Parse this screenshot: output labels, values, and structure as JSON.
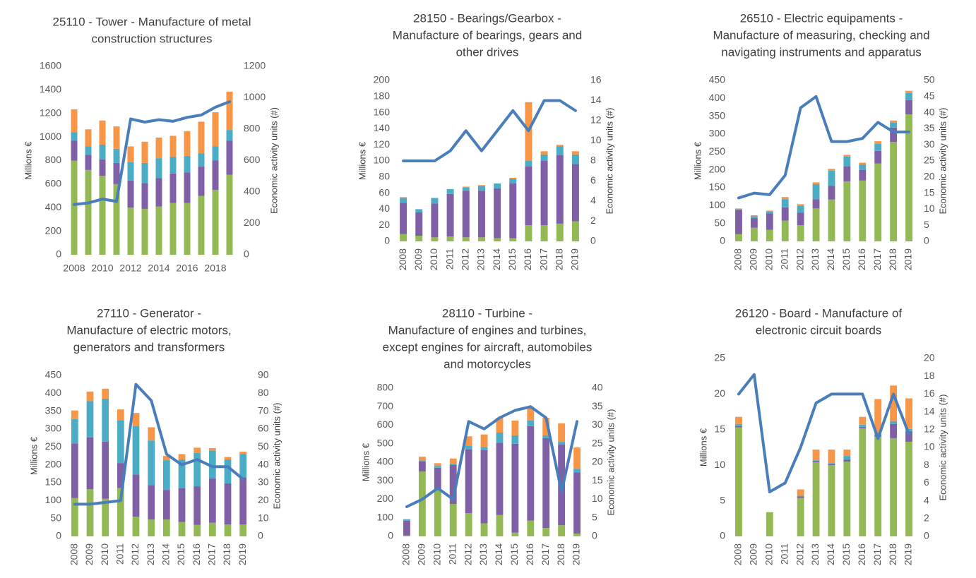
{
  "chart_data": [
    {
      "type": "bar",
      "title": [
        "25110 - Tower - Manufacture of metal",
        "construction structures"
      ],
      "ylabel": "Millions €",
      "y2label": "Economic activity units (#)",
      "categories": [
        "2008",
        null,
        "2010",
        null,
        "2012",
        null,
        "2014",
        null,
        "2016",
        null,
        "2018",
        null
      ],
      "ylim": [
        0,
        1600
      ],
      "yticks": [
        0,
        200,
        400,
        600,
        800,
        1000,
        1200,
        1400,
        1600
      ],
      "y2lim": [
        0,
        1200
      ],
      "y2ticks": [
        0,
        200,
        400,
        600,
        800,
        1000,
        1200
      ],
      "grid": false,
      "series": [
        {
          "color": "#93b955",
          "values": [
            800,
            720,
            670,
            600,
            400,
            390,
            410,
            440,
            440,
            500,
            550,
            680
          ]
        },
        {
          "color": "#7f5fa5",
          "values": [
            170,
            130,
            140,
            180,
            230,
            220,
            240,
            250,
            260,
            250,
            250,
            290
          ]
        },
        {
          "color": "#4bacc6",
          "values": [
            70,
            70,
            125,
            120,
            155,
            170,
            170,
            140,
            140,
            110,
            120,
            90
          ]
        },
        {
          "color": "#f79646",
          "values": [
            195,
            145,
            205,
            190,
            135,
            180,
            175,
            180,
            210,
            270,
            290,
            325
          ]
        },
        {
          "color": "#4a7ebb",
          "type": "line",
          "axis": "y2",
          "values": [
            320,
            330,
            355,
            340,
            865,
            845,
            860,
            850,
            875,
            890,
            940,
            975
          ]
        }
      ]
    },
    {
      "type": "bar",
      "title": [
        "28150 - Bearings/Gearbox -",
        "Manufacture of bearings, gears and",
        "other drives"
      ],
      "ylabel": "Millions €",
      "y2label": "Economic activity units (#)",
      "categories": [
        "2008",
        "2009",
        "2010",
        "2011",
        "2012",
        "2013",
        "2014",
        "2015",
        "2016",
        "2017",
        "2018",
        "2019"
      ],
      "ylim": [
        0,
        200
      ],
      "yticks": [
        0,
        20,
        40,
        60,
        80,
        100,
        120,
        140,
        160,
        180,
        200
      ],
      "y2lim": [
        0,
        16
      ],
      "y2ticks": [
        0,
        2,
        4,
        6,
        8,
        10,
        12,
        14,
        16
      ],
      "grid": false,
      "series": [
        {
          "color": "#93b955",
          "values": [
            9,
            7,
            5,
            6,
            5,
            5,
            4,
            4,
            20,
            20,
            22,
            25
          ]
        },
        {
          "color": "#7f5fa5",
          "values": [
            39,
            29,
            42,
            53,
            58,
            58,
            62,
            68,
            73,
            80,
            85,
            71
          ]
        },
        {
          "color": "#4bacc6",
          "values": [
            6,
            4,
            7,
            6,
            4,
            6,
            6,
            6,
            7,
            8,
            11,
            12
          ]
        },
        {
          "color": "#f79646",
          "values": [
            1,
            0,
            0,
            0,
            1,
            1,
            0,
            1,
            73,
            4,
            2,
            4
          ]
        },
        {
          "color": "#4a7ebb",
          "type": "line",
          "axis": "y2",
          "values": [
            8,
            8,
            8,
            9,
            11,
            9,
            11,
            13,
            11,
            14,
            14,
            13
          ]
        }
      ]
    },
    {
      "type": "bar",
      "title": [
        "26510 - Electric equipaments -",
        "Manufacture of measuring, checking and",
        "navigating instruments and apparatus"
      ],
      "ylabel": "Millions €",
      "y2label": "Economic activity units (#)",
      "categories": [
        "2008",
        "2009",
        "2010",
        "2011",
        "2012",
        "2013",
        "2014",
        "2015",
        "2016",
        "2017",
        "2018",
        "2019"
      ],
      "ylim": [
        0,
        450
      ],
      "yticks": [
        0,
        50,
        100,
        150,
        200,
        250,
        300,
        350,
        400,
        450
      ],
      "y2lim": [
        0,
        50
      ],
      "y2ticks": [
        0,
        5,
        10,
        15,
        20,
        25,
        30,
        35,
        40,
        45,
        50
      ],
      "grid": false,
      "series": [
        {
          "color": "#93b955",
          "values": [
            20,
            38,
            32,
            58,
            45,
            92,
            117,
            168,
            170,
            218,
            278,
            355
          ]
        },
        {
          "color": "#7f5fa5",
          "values": [
            68,
            27,
            46,
            37,
            35,
            26,
            38,
            42,
            30,
            35,
            40,
            40
          ]
        },
        {
          "color": "#4bacc6",
          "values": [
            2,
            5,
            5,
            23,
            20,
            42,
            43,
            27,
            15,
            20,
            15,
            20
          ]
        },
        {
          "color": "#f79646",
          "values": [
            2,
            3,
            3,
            6,
            4,
            5,
            5,
            5,
            5,
            7,
            5,
            6
          ]
        },
        {
          "color": "#4a7ebb",
          "type": "line",
          "axis": "y2",
          "values": [
            13.5,
            15,
            14.5,
            20.5,
            41.5,
            45,
            31,
            31,
            32,
            37,
            34,
            34
          ]
        }
      ]
    },
    {
      "type": "bar",
      "title": [
        "27110 - Generator -",
        "Manufacture of electric motors,",
        "generators and transformers"
      ],
      "ylabel": "Millions €",
      "y2label": "Economic activity units (#)",
      "categories": [
        "2008",
        "2009",
        "2010",
        "2011",
        "2012",
        "2013",
        "2014",
        "2015",
        "2016",
        "2017",
        "2018",
        "2019"
      ],
      "ylim": [
        0,
        450
      ],
      "yticks": [
        0,
        50,
        100,
        150,
        200,
        250,
        300,
        350,
        400,
        450
      ],
      "y2lim": [
        0,
        90
      ],
      "y2ticks": [
        0,
        10,
        20,
        30,
        40,
        50,
        60,
        70,
        80,
        90
      ],
      "grid": false,
      "series": [
        {
          "color": "#93b955",
          "values": [
            107,
            132,
            105,
            135,
            55,
            47,
            47,
            40,
            32,
            38,
            33,
            33
          ]
        },
        {
          "color": "#7f5fa5",
          "values": [
            153,
            145,
            160,
            70,
            118,
            96,
            83,
            95,
            108,
            124,
            115,
            132
          ]
        },
        {
          "color": "#4bacc6",
          "values": [
            68,
            101,
            120,
            120,
            135,
            125,
            83,
            80,
            93,
            78,
            67,
            65
          ]
        },
        {
          "color": "#f79646",
          "values": [
            24,
            27,
            28,
            30,
            37,
            37,
            12,
            15,
            15,
            7,
            7,
            7
          ]
        },
        {
          "color": "#4a7ebb",
          "type": "line",
          "axis": "y2",
          "values": [
            18,
            18,
            19,
            20,
            85,
            76,
            46,
            40,
            43,
            39,
            39,
            32
          ]
        }
      ]
    },
    {
      "type": "bar",
      "title": [
        "28110 - Turbine -",
        "Manufacture of engines and turbines,",
        "except engines for aircraft, automobiles",
        "and motorcycles"
      ],
      "ylabel": "Millions €",
      "y2label": "Economic activity units (#)",
      "categories": [
        "2008",
        "2009",
        "2010",
        "2011",
        "2012",
        "2013",
        "2014",
        "2015",
        "2016",
        "2017",
        "2018",
        "2019"
      ],
      "ylim": [
        0,
        800
      ],
      "yticks": [
        0,
        100,
        200,
        300,
        400,
        500,
        600,
        700,
        800
      ],
      "y2lim": [
        0,
        40
      ],
      "y2ticks": [
        0,
        5,
        10,
        15,
        20,
        25,
        30,
        35,
        40
      ],
      "grid": false,
      "series": [
        {
          "color": "#93b955",
          "values": [
            5,
            350,
            250,
            175,
            125,
            70,
            115,
            20,
            85,
            45,
            60,
            15
          ]
        },
        {
          "color": "#7f5fa5",
          "values": [
            80,
            55,
            120,
            210,
            345,
            395,
            390,
            480,
            510,
            485,
            435,
            330
          ]
        },
        {
          "color": "#4bacc6",
          "values": [
            7,
            5,
            10,
            8,
            20,
            15,
            55,
            45,
            30,
            15,
            15,
            20
          ]
        },
        {
          "color": "#f79646",
          "values": [
            1,
            20,
            15,
            27,
            50,
            70,
            80,
            80,
            75,
            95,
            100,
            115
          ]
        },
        {
          "color": "#4a7ebb",
          "type": "line",
          "axis": "y2",
          "values": [
            8,
            10,
            13,
            10,
            31,
            29,
            32,
            34,
            35,
            32,
            12,
            31
          ]
        }
      ]
    },
    {
      "type": "bar",
      "title": [
        "26120 - Board - Manufacture of",
        "electronic circuit boards"
      ],
      "ylabel": "Millions €",
      "y2label": "Economic activity units (#)",
      "categories": [
        "2008",
        "2009",
        "2010",
        "2011",
        "2012",
        "2013",
        "2014",
        "2015",
        "2016",
        "2017",
        "2018",
        "2019"
      ],
      "ylim": [
        0,
        25
      ],
      "yticks": [
        0,
        5,
        10,
        15,
        20,
        25
      ],
      "y2lim": [
        0,
        20
      ],
      "y2ticks": [
        0,
        2,
        4,
        6,
        8,
        10,
        12,
        14,
        16,
        18,
        20
      ],
      "grid": false,
      "series": [
        {
          "color": "#93b955",
          "values": [
            15.3,
            null,
            3.4,
            null,
            5.4,
            10.4,
            10.0,
            10.5,
            15.2,
            14.0,
            13.8,
            13.3
          ]
        },
        {
          "color": "#7f5fa5",
          "values": [
            0.2,
            null,
            0,
            null,
            0.2,
            0.2,
            0.2,
            0.3,
            0.2,
            0.3,
            2.0,
            1.5
          ]
        },
        {
          "color": "#4bacc6",
          "values": [
            0.3,
            null,
            0,
            null,
            0.1,
            0.1,
            0.1,
            0.5,
            0.3,
            0.3,
            0.4,
            0.3
          ]
        },
        {
          "color": "#f79646",
          "values": [
            1.0,
            null,
            0,
            null,
            0.9,
            1.5,
            1.9,
            0.9,
            1.1,
            4.7,
            5.0,
            4.3
          ]
        },
        {
          "color": "#4a7ebb",
          "type": "line",
          "axis": "y2",
          "values": [
            16,
            18.2,
            5,
            6,
            10,
            15,
            16,
            16,
            16,
            11,
            16,
            11.5
          ]
        }
      ]
    }
  ]
}
